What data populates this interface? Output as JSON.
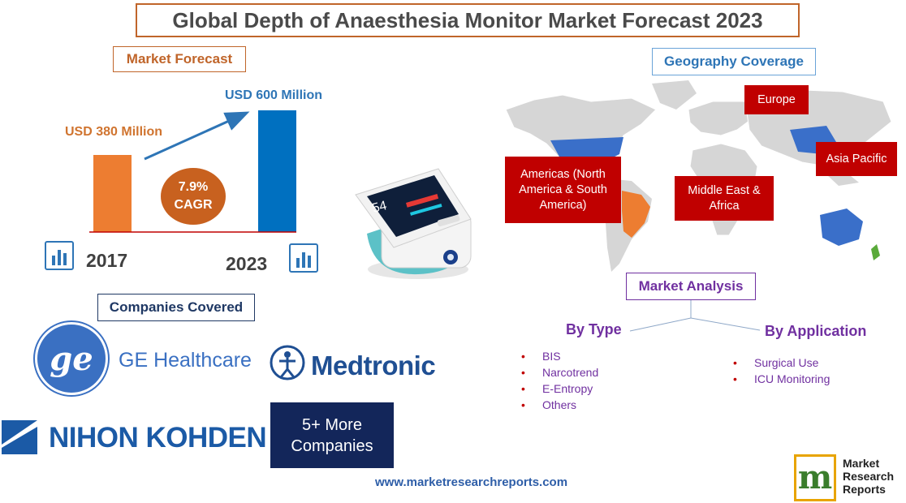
{
  "title": "Global Depth of Anaesthesia Monitor Market Forecast 2023",
  "market_forecast": {
    "heading": "Market Forecast",
    "label_2017": "USD 380 Million",
    "label_2023": "USD 600 Million",
    "cagr_value": "7.9%",
    "cagr_label": "CAGR",
    "year_2017": "2017",
    "year_2023": "2023"
  },
  "chart_data": {
    "type": "bar",
    "categories": [
      "2017",
      "2023"
    ],
    "values": [
      380,
      600
    ],
    "title": "Market Forecast",
    "xlabel": "",
    "ylabel": "",
    "ylim": [
      0,
      600
    ],
    "value_labels": [
      "USD 380 Million",
      "USD 600 Million"
    ],
    "annotation": "7.9% CAGR",
    "colors": [
      "#ed7d31",
      "#0070c0"
    ]
  },
  "geography": {
    "heading": "Geography Coverage",
    "regions": {
      "europe": "Europe",
      "asia_pacific": "Asia Pacific",
      "middle_east_africa": "Middle East & Africa",
      "americas": "Americas (North America & South America)"
    }
  },
  "market_analysis": {
    "heading": "Market Analysis",
    "by_type": {
      "heading": "By Type",
      "items": [
        "BIS",
        "Narcotrend",
        "E-Entropy",
        "Others"
      ]
    },
    "by_application": {
      "heading": "By Application",
      "items": [
        "Surgical Use",
        "ICU Monitoring"
      ]
    }
  },
  "companies": {
    "heading": "Companies Covered",
    "ge": "GE Healthcare",
    "medtronic": "Medtronic",
    "nihon_kohden": "NIHON KOHDEN",
    "more_line1": "5+ More",
    "more_line2": "Companies"
  },
  "footer": {
    "url": "www.marketresearchreports.com",
    "brand_line1": "Market",
    "brand_line2": "Research",
    "brand_line3": "Reports"
  },
  "colors": {
    "accent_orange": "#c0652a",
    "accent_blue": "#2e75b6",
    "region_red": "#c00000",
    "analysis_purple": "#7030a0",
    "navy": "#13265a"
  }
}
